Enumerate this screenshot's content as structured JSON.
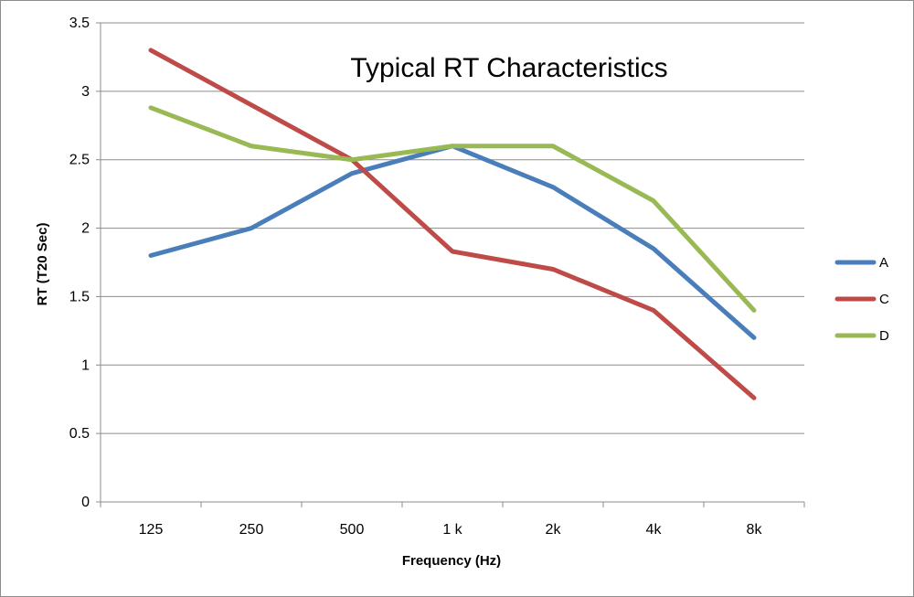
{
  "chart_data": {
    "type": "line",
    "title": "Typical RT Characteristics",
    "xlabel": "Frequency (Hz)",
    "ylabel": "RT  (T20 Sec)",
    "categories": [
      "125",
      "250",
      "500",
      "1 k",
      "2k",
      "4k",
      "8k"
    ],
    "ylim": [
      0,
      3.5
    ],
    "yticks": [
      "0",
      "0.5",
      "1",
      "1.5",
      "2",
      "2.5",
      "3",
      "3.5"
    ],
    "grid": true,
    "legend_position": "right",
    "series": [
      {
        "name": "A",
        "color": "#4a7ebb",
        "values": [
          1.8,
          2.0,
          2.4,
          2.6,
          2.3,
          1.85,
          1.2
        ]
      },
      {
        "name": "C",
        "color": "#be4b48",
        "values": [
          3.3,
          2.9,
          2.5,
          1.83,
          1.7,
          1.4,
          0.76
        ]
      },
      {
        "name": "D",
        "color": "#98b954",
        "values": [
          2.88,
          2.6,
          2.5,
          2.6,
          2.6,
          2.2,
          1.4
        ]
      }
    ]
  }
}
